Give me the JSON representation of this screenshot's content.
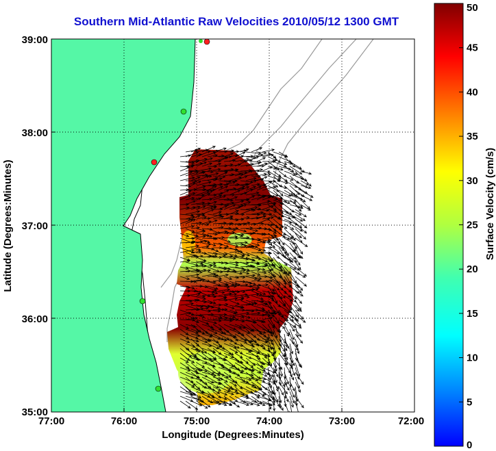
{
  "title": "Southern Mid-Atlantic Raw Velocities 2010/05/12 1300 GMT",
  "xlabel": "Longitude (Degrees:Minutes)",
  "ylabel": "Latitude (Degrees:Minutes)",
  "colorbar_label": "Surface Velocity (cm/s)",
  "x_ticks": [
    "77:00",
    "76:00",
    "75:00",
    "74:00",
    "73:00",
    "72:00"
  ],
  "y_ticks": [
    "39:00",
    "38:00",
    "37:00",
    "36:00",
    "35:00"
  ],
  "colorbar_ticks": [
    "50",
    "45",
    "40",
    "35",
    "30",
    "25",
    "20",
    "15",
    "10",
    "5",
    "0"
  ],
  "colors": {
    "land": "#55f7a6",
    "title": "#1010d0",
    "coast": "#000000",
    "bathymetry": "#999999",
    "station": "#ff2020",
    "station_alt": "#30e030"
  },
  "chart_data": {
    "type": "heatmap",
    "xlim": [
      -77,
      -72
    ],
    "ylim": [
      35,
      39
    ],
    "clim": [
      0,
      50
    ],
    "colormap": "jet",
    "grid": true,
    "legend_placement": "right colorbar"
  }
}
